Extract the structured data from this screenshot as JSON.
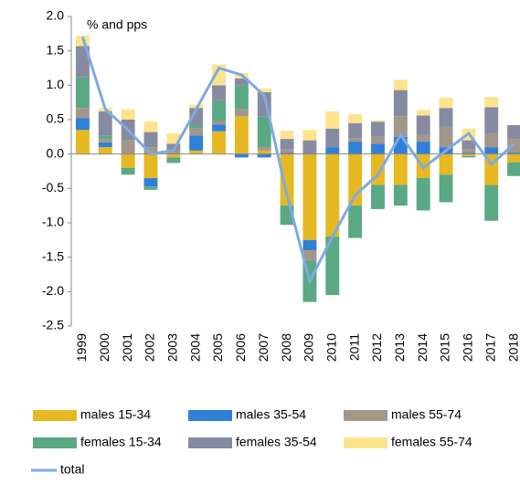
{
  "chart_data": {
    "type": "stacked-bar-line",
    "annotation": "% and pps",
    "categories": [
      "1999",
      "2000",
      "2001",
      "2002",
      "2003",
      "2004",
      "2005",
      "2006",
      "2007",
      "2008",
      "2009",
      "2010",
      "2011",
      "2012",
      "2013",
      "2014",
      "2015",
      "2016",
      "2017",
      "2018"
    ],
    "series": [
      {
        "name": "males 15-34",
        "color": "#e6b822",
        "values": [
          0.35,
          0.1,
          -0.2,
          -0.35,
          -0.05,
          0.05,
          0.33,
          0.55,
          0.05,
          -0.75,
          -1.25,
          -1.2,
          -0.75,
          -0.45,
          -0.45,
          -0.35,
          -0.3,
          -0.03,
          -0.45,
          -0.12
        ]
      },
      {
        "name": "males 35-54",
        "color": "#2f80d8",
        "values": [
          0.17,
          0.07,
          0,
          -0.12,
          0,
          0.22,
          0.1,
          -0.05,
          -0.05,
          0.02,
          -0.15,
          0.1,
          0.18,
          0.15,
          0.25,
          0.18,
          0.1,
          0.02,
          0.1,
          0.02
        ]
      },
      {
        "name": "males 55-74",
        "color": "#a3968a",
        "values": [
          0.15,
          0.05,
          0.2,
          0.1,
          0.05,
          0.1,
          0.05,
          0.1,
          0.05,
          0.05,
          -0.15,
          0,
          0.05,
          0.1,
          0.3,
          0.1,
          0.3,
          0.05,
          0.2,
          0.2
        ]
      },
      {
        "name": "females 15-34",
        "color": "#5aa884",
        "values": [
          0.45,
          0.05,
          -0.1,
          -0.05,
          -0.08,
          0.05,
          0.3,
          0.35,
          0.45,
          -0.28,
          -0.6,
          -0.85,
          -0.47,
          -0.35,
          -0.3,
          -0.47,
          -0.4,
          -0.02,
          -0.52,
          -0.2
        ]
      },
      {
        "name": "females 35-54",
        "color": "#878ba2",
        "values": [
          0.45,
          0.35,
          0.3,
          0.22,
          0.1,
          0.25,
          0.22,
          0.1,
          0.35,
          0.15,
          0.2,
          0.27,
          0.22,
          0.22,
          0.38,
          0.28,
          0.27,
          0.13,
          0.38,
          0.2
        ]
      },
      {
        "name": "females 55-74",
        "color": "#fde48c",
        "values": [
          0.15,
          0.05,
          0.15,
          0.15,
          0.15,
          0.05,
          0.3,
          0.08,
          0.05,
          0.12,
          0.15,
          0.25,
          0.13,
          0.02,
          0.15,
          0.08,
          0.15,
          0.17,
          0.15,
          0
        ]
      },
      {
        "name": "total",
        "type": "line",
        "color": "#7eaae2",
        "values": [
          1.7,
          0.65,
          0.35,
          0.0,
          0.05,
          0.65,
          1.25,
          1.15,
          0.85,
          -0.6,
          -1.85,
          -1.2,
          -0.6,
          -0.3,
          0.28,
          -0.2,
          0.05,
          0.3,
          -0.15,
          0.15
        ]
      }
    ],
    "ylim": [
      -2.5,
      2
    ],
    "yticks": [
      {
        "value": 2,
        "label": "2.0"
      },
      1.5,
      {
        "value": 1,
        "label": "1.0"
      },
      0.5,
      {
        "value": 0,
        "label": "0.0"
      },
      -0.5,
      {
        "value": -1,
        "label": "-1.0"
      },
      -1.5,
      {
        "value": -2,
        "label": "-2.0"
      },
      -2.5
    ]
  }
}
